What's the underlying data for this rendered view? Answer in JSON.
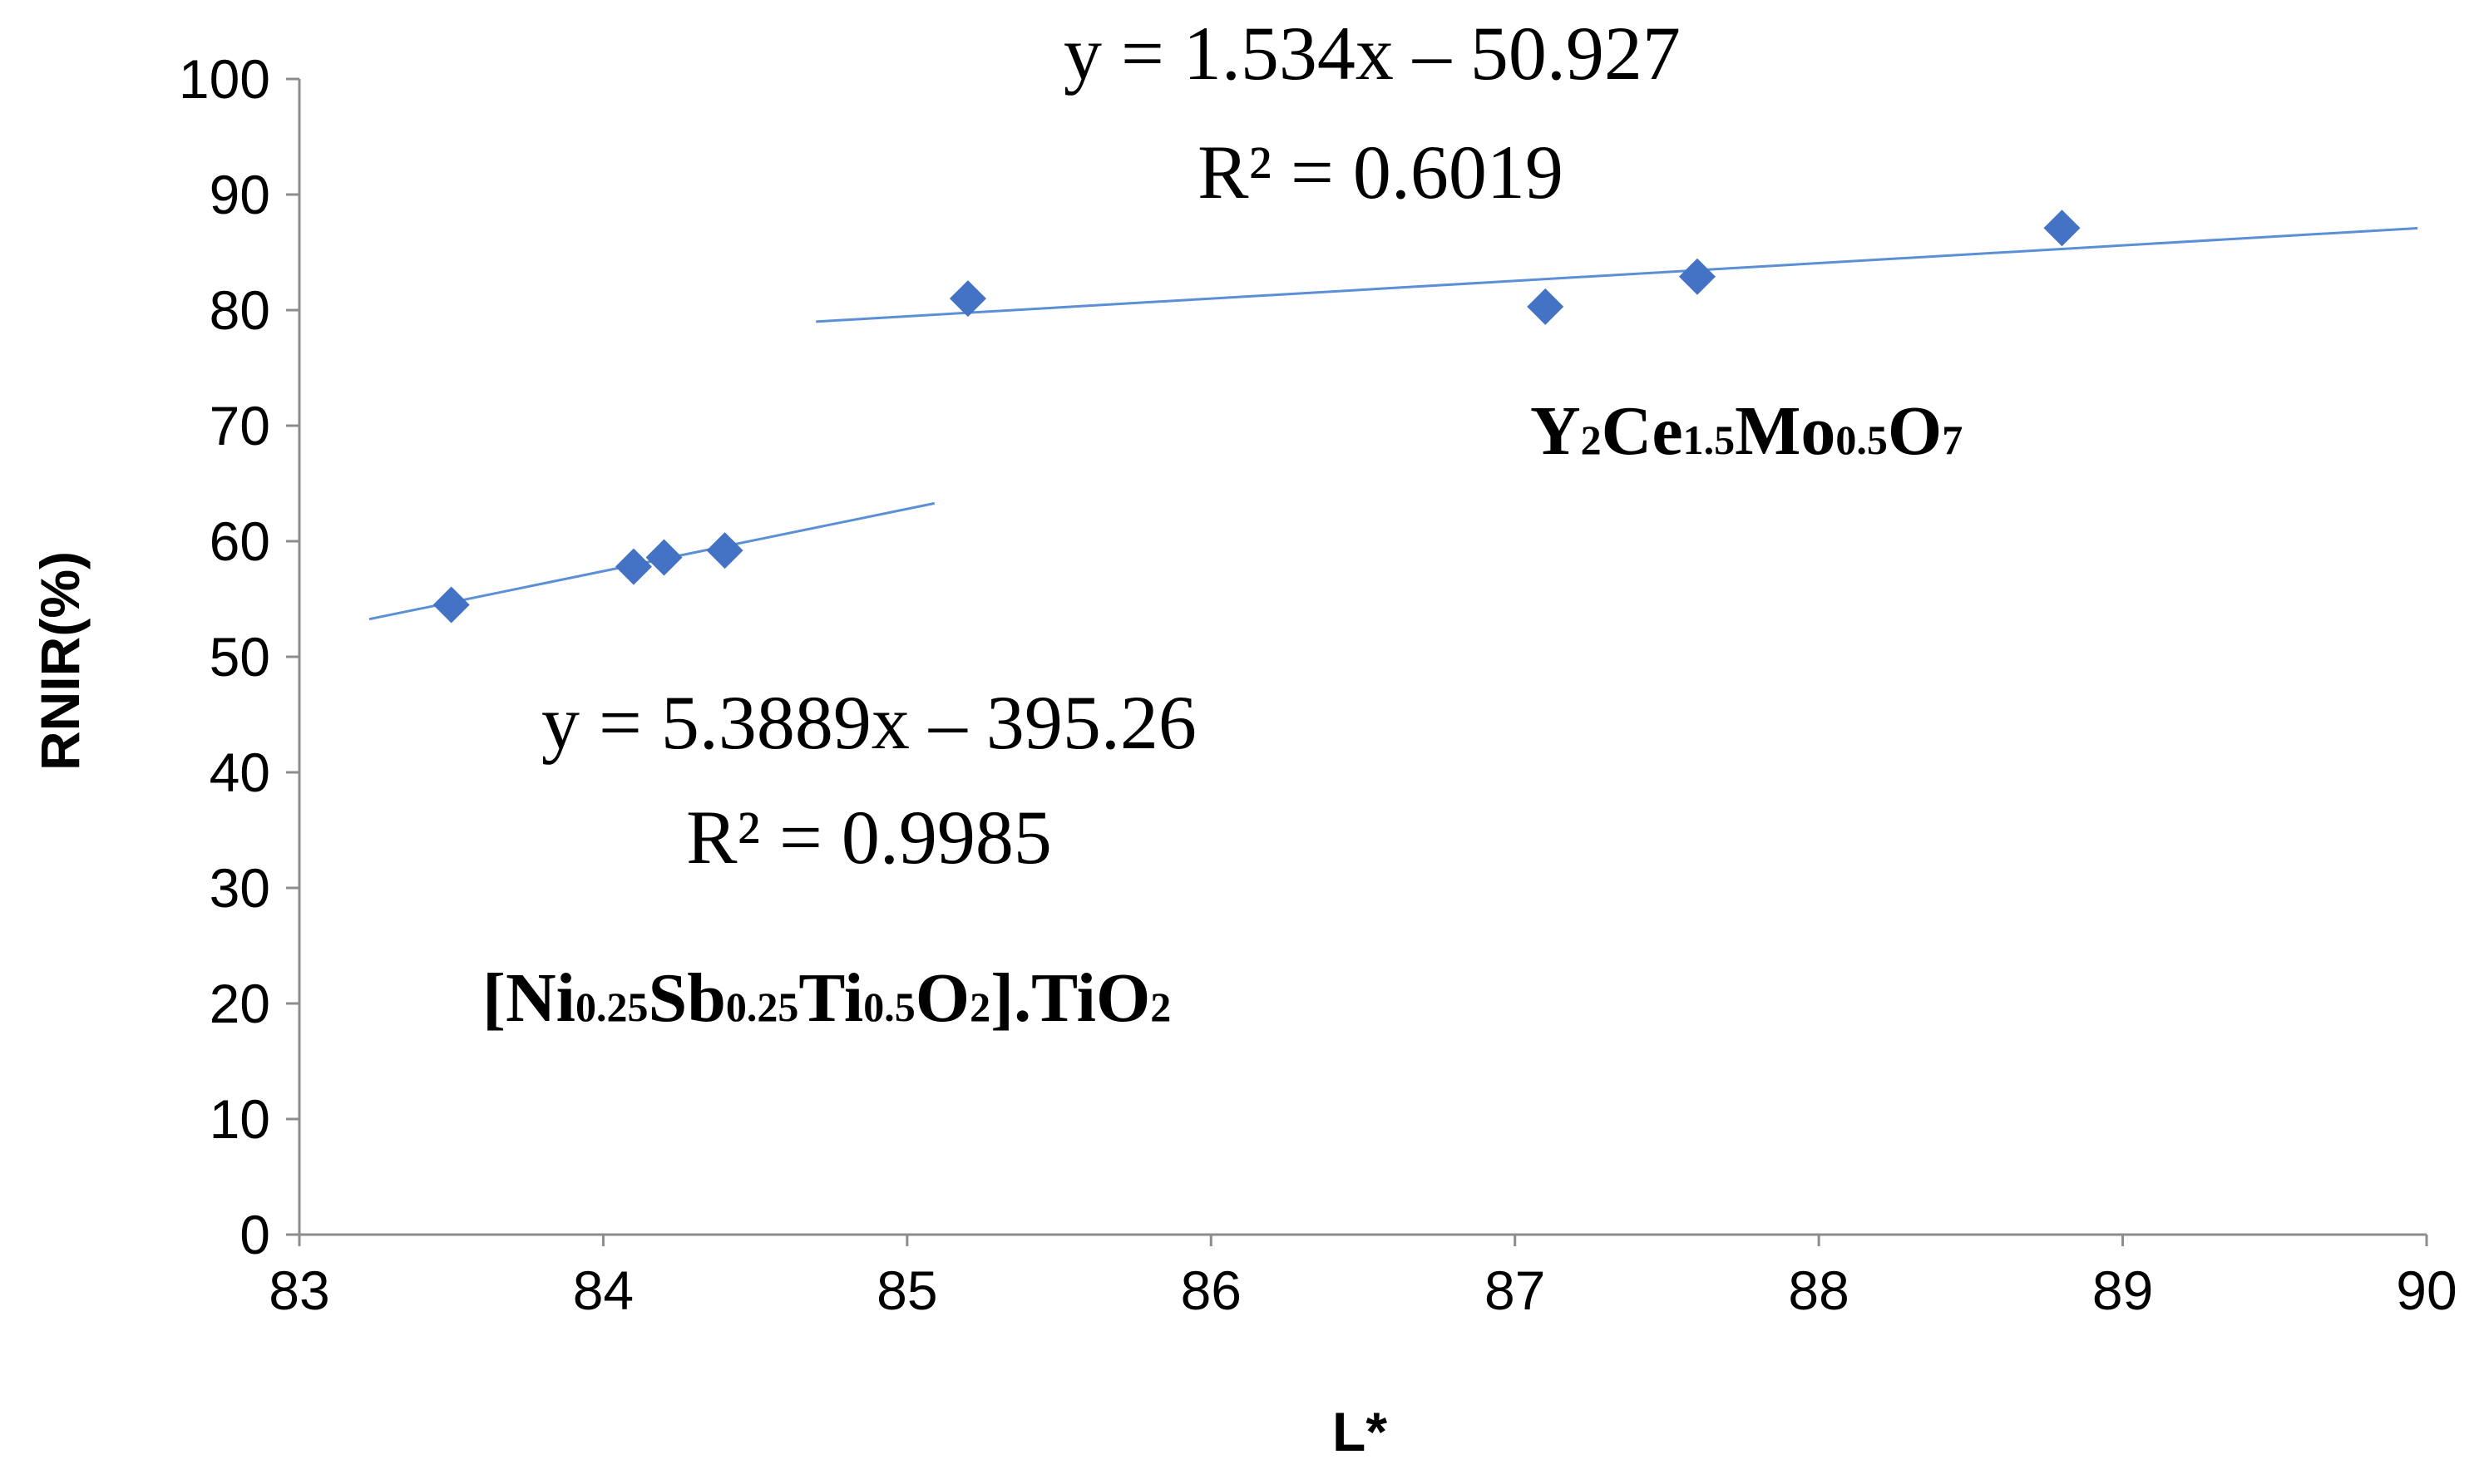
{
  "chart_data": {
    "type": "scatter",
    "title": "",
    "xlabel": "L*",
    "ylabel": "RNIR(%)",
    "xlim": [
      83,
      90
    ],
    "ylim": [
      0,
      100
    ],
    "x_ticks": [
      "83",
      "84",
      "85",
      "86",
      "87",
      "88",
      "89",
      "90"
    ],
    "y_ticks": [
      "0",
      "10",
      "20",
      "30",
      "40",
      "50",
      "60",
      "70",
      "80",
      "90",
      "100"
    ],
    "grid": false,
    "legend": "none",
    "marker_color": "#4472C4",
    "trendline_color": "#5B8FD6",
    "series": [
      {
        "name": "[Ni0.25Sb0.25Ti0.5O2].TiO2",
        "label_parts": [
          {
            "t": "[Ni",
            "sub": false
          },
          {
            "t": "0.25",
            "sub": true
          },
          {
            "t": "Sb",
            "sub": false
          },
          {
            "t": "0.25",
            "sub": true
          },
          {
            "t": "Ti",
            "sub": false
          },
          {
            "t": "0.5",
            "sub": true
          },
          {
            "t": "O",
            "sub": false
          },
          {
            "t": "2",
            "sub": true
          },
          {
            "t": "].TiO",
            "sub": false
          },
          {
            "t": "2",
            "sub": true
          }
        ],
        "x": [
          83.5,
          84.1,
          84.2,
          84.4
        ],
        "y": [
          54.5,
          57.8,
          58.6,
          59.2
        ],
        "trendline": {
          "slope": 5.3889,
          "intercept": -395.26,
          "x_range": [
            83.23,
            85.09
          ],
          "equation": "y = 5.3889x – 395.26",
          "r2": "R² = 0.9985"
        }
      },
      {
        "name": "Y2Ce1.5Mo0.5O7",
        "label_parts": [
          {
            "t": "Y",
            "sub": false
          },
          {
            "t": "2",
            "sub": true
          },
          {
            "t": "Ce",
            "sub": false
          },
          {
            "t": "1.5",
            "sub": true
          },
          {
            "t": "Mo",
            "sub": false
          },
          {
            "t": "0.5",
            "sub": true
          },
          {
            "t": "O",
            "sub": false
          },
          {
            "t": "7",
            "sub": true
          }
        ],
        "x": [
          85.2,
          87.1,
          87.6,
          88.8
        ],
        "y": [
          81.0,
          80.3,
          82.9,
          87.1
        ],
        "trendline": {
          "slope": 1.534,
          "intercept": -50.927,
          "x_range": [
            84.7,
            89.97
          ],
          "equation": "y = 1.534x – 50.927",
          "r2": "R² = 0.6019"
        }
      }
    ]
  }
}
